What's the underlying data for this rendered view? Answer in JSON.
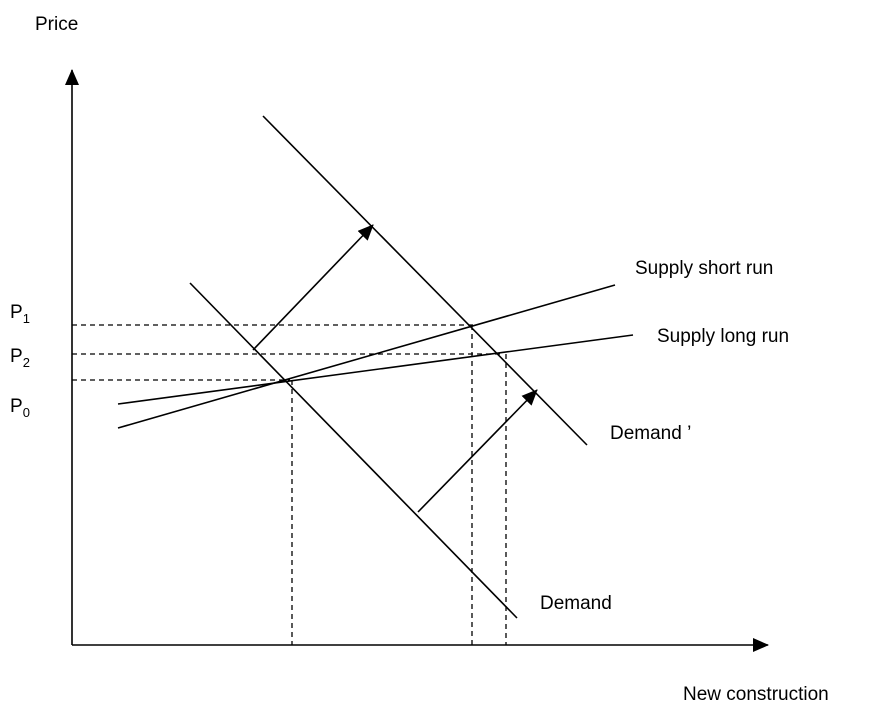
{
  "y_axis_label": "Price",
  "x_axis_label": "New construction",
  "price_labels": [
    {
      "letter": "P",
      "subscript": "1"
    },
    {
      "letter": "P",
      "subscript": "2"
    },
    {
      "letter": "P",
      "subscript": "0"
    }
  ],
  "curves": {
    "supply_short_run": "Supply short run",
    "supply_long_run": "Supply long run",
    "demand_shifted": "Demand ’",
    "demand": "Demand"
  }
}
